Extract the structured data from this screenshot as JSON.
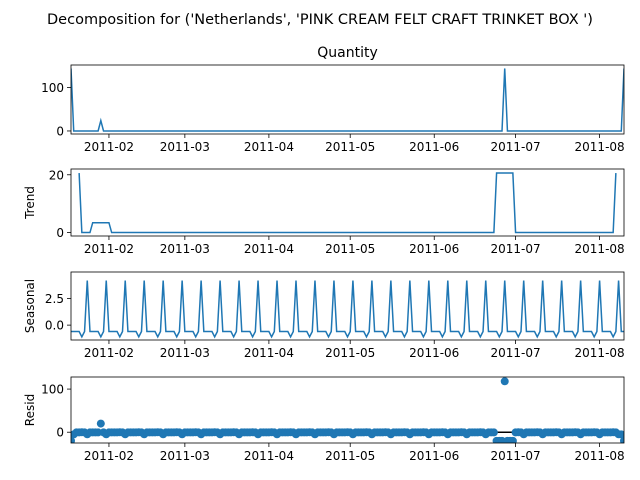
{
  "figure_title": "Decomposition for ('Netherlands', 'PINK CREAM FELT CRAFT TRINKET BOX ')",
  "chart_data": {
    "type": "line",
    "x_start": "2011-01-18",
    "x_end": "2011-08-10",
    "x_ticks": [
      "2011-02",
      "2011-03",
      "2011-04",
      "2011-05",
      "2011-06",
      "2011-07",
      "2011-08"
    ],
    "line_color": "#1f77b4",
    "panels": [
      {
        "title": "Quantity",
        "ylabel": "",
        "kind": "line",
        "ylim": [
          -7,
          152
        ],
        "yticks": [
          0,
          100
        ],
        "ytick_labels": [
          "0",
          "100"
        ],
        "points": [
          [
            "2011-01-18",
            144
          ],
          [
            "2011-01-19",
            0
          ],
          [
            "2011-01-28",
            0
          ],
          [
            "2011-01-29",
            24
          ],
          [
            "2011-01-30",
            0
          ],
          [
            "2011-06-26",
            0
          ],
          [
            "2011-06-27",
            144
          ],
          [
            "2011-06-28",
            0
          ],
          [
            "2011-08-09",
            0
          ],
          [
            "2011-08-10",
            144
          ]
        ]
      },
      {
        "title": "",
        "ylabel": "Trend",
        "kind": "line",
        "ylim": [
          -1.2,
          22
        ],
        "yticks": [
          0,
          20
        ],
        "ytick_labels": [
          "0",
          "20"
        ],
        "points": [
          [
            "2011-01-21",
            20.6
          ],
          [
            "2011-01-22",
            0
          ],
          [
            "2011-01-25",
            0
          ],
          [
            "2011-01-26",
            3.4
          ],
          [
            "2011-02-01",
            3.4
          ],
          [
            "2011-02-02",
            0
          ],
          [
            "2011-06-23",
            0
          ],
          [
            "2011-06-24",
            20.6
          ],
          [
            "2011-06-30",
            20.6
          ],
          [
            "2011-07-01",
            0
          ],
          [
            "2011-08-06",
            0
          ],
          [
            "2011-08-07",
            20.6
          ]
        ]
      },
      {
        "title": "",
        "ylabel": "Seasonal",
        "kind": "seasonal",
        "ylim": [
          -1.4,
          5.0
        ],
        "yticks": [
          0,
          2.5
        ],
        "ytick_labels": [
          "0.0",
          "2.5"
        ],
        "pattern": [
          -0.6,
          -0.6,
          -0.6,
          -0.6,
          -1.1,
          -0.6,
          4.2
        ],
        "pattern_start": "2011-01-18"
      },
      {
        "title": "",
        "ylabel": "Resid",
        "kind": "scatter",
        "ylim": [
          -25,
          128
        ],
        "yticks": [
          0,
          100
        ],
        "ytick_labels": [
          "0",
          "100"
        ],
        "zero_line": true,
        "special": [
          [
            "2011-01-18",
            -20
          ],
          [
            "2011-01-19",
            -5
          ],
          [
            "2011-01-29",
            20
          ],
          [
            "2011-06-24",
            -20
          ],
          [
            "2011-06-25",
            -20
          ],
          [
            "2011-06-26",
            -20
          ],
          [
            "2011-06-27",
            118
          ],
          [
            "2011-06-28",
            -20
          ],
          [
            "2011-06-29",
            -20
          ],
          [
            "2011-06-30",
            -20
          ],
          [
            "2011-08-09",
            -5
          ],
          [
            "2011-08-10",
            -20
          ]
        ]
      }
    ]
  }
}
